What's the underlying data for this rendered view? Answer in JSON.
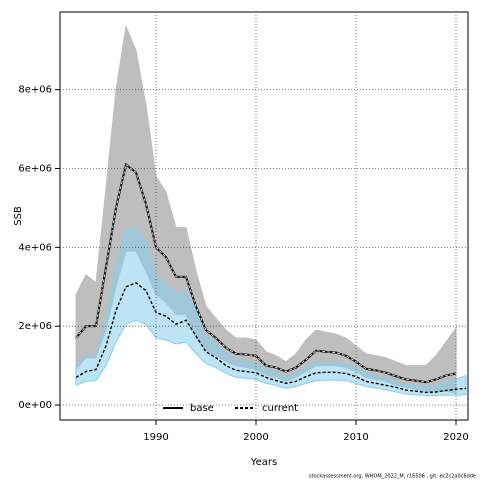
{
  "chart_data": {
    "type": "line",
    "xlabel": "Years",
    "ylabel": "SSB",
    "footer": "stockassessment.org, WHOM_2022_M, r16506 , git: ec2c2a0c6dde",
    "xlim": [
      1980.4,
      2021.2
    ],
    "ylim": [
      -380000,
      9970000
    ],
    "xticks": [
      1990,
      2000,
      2010,
      2020
    ],
    "yticks": [
      {
        "value": 0,
        "label": "0e+00"
      },
      {
        "value": 2000000,
        "label": "2e+06"
      },
      {
        "value": 4000000,
        "label": "4e+06"
      },
      {
        "value": 6000000,
        "label": "6e+06"
      },
      {
        "value": 8000000,
        "label": "8e+06"
      }
    ],
    "grid": true,
    "legend": "bottom",
    "series": [
      {
        "name": "base",
        "color": "#000000",
        "band_color": "#bebebe",
        "dashed": true,
        "x": [
          1982,
          1983,
          1984,
          1985,
          1986,
          1987,
          1988,
          1989,
          1990,
          1991,
          1992,
          1993,
          1994,
          1995,
          1996,
          1997,
          1998,
          1999,
          2000,
          2001,
          2002,
          2003,
          2004,
          2005,
          2006,
          2007,
          2008,
          2009,
          2010,
          2011,
          2012,
          2013,
          2014,
          2015,
          2016,
          2017,
          2018,
          2019,
          2020
        ],
        "values": [
          1700000.0,
          2000000.0,
          2000000.0,
          3500000.0,
          5000000.0,
          6100000.0,
          5900000.0,
          5100000.0,
          4000000.0,
          3750000.0,
          3250000.0,
          3250000.0,
          2500000.0,
          1900000.0,
          1700000.0,
          1450000.0,
          1300000.0,
          1280000.0,
          1250000.0,
          1000000.0,
          950000.0,
          850000.0,
          950000.0,
          1150000.0,
          1380000.0,
          1350000.0,
          1330000.0,
          1250000.0,
          1100000.0,
          920000.0,
          880000.0,
          820000.0,
          730000.0,
          650000.0,
          620000.0,
          580000.0,
          650000.0,
          750000.0,
          800000.0
        ],
        "upper": [
          2800000.0,
          3300000.0,
          3100000.0,
          5500000.0,
          8000000.0,
          9600000.0,
          9000000.0,
          7600000.0,
          5800000.0,
          5400000.0,
          4500000.0,
          4500000.0,
          3400000.0,
          2500000.0,
          2200000.0,
          1900000.0,
          1700000.0,
          1700000.0,
          1650000.0,
          1350000.0,
          1250000.0,
          1100000.0,
          1300000.0,
          1650000.0,
          1900000.0,
          1850000.0,
          1800000.0,
          1700000.0,
          1500000.0,
          1300000.0,
          1250000.0,
          1200000.0,
          1100000.0,
          1000000.0,
          1000000.0,
          1000000.0,
          1250000.0,
          1600000.0,
          1950000.0
        ],
        "lower": [
          900000.0,
          1200000.0,
          1200000.0,
          1900000.0,
          3000000.0,
          3900000.0,
          3900000.0,
          3400000.0,
          2800000.0,
          2600000.0,
          2300000.0,
          2300000.0,
          1700000.0,
          1400000.0,
          1250000.0,
          1100000.0,
          1000000.0,
          950000.0,
          900000.0,
          750000.0,
          700000.0,
          600000.0,
          700000.0,
          850000.0,
          1000000.0,
          1000000.0,
          1000000.0,
          950000.0,
          850000.0,
          700000.0,
          650000.0,
          600000.0,
          500000.0,
          450000.0,
          400000.0,
          350000.0,
          350000.0,
          350000.0,
          300000.0
        ]
      },
      {
        "name": "current",
        "color": "#000000",
        "band_color": "#87ceeb",
        "dashed": true,
        "x": [
          1982,
          1983,
          1984,
          1985,
          1986,
          1987,
          1988,
          1989,
          1990,
          1991,
          1992,
          1993,
          1994,
          1995,
          1996,
          1997,
          1998,
          1999,
          2000,
          2001,
          2002,
          2003,
          2004,
          2005,
          2006,
          2007,
          2008,
          2009,
          2010,
          2011,
          2012,
          2013,
          2014,
          2015,
          2016,
          2017,
          2018,
          2019,
          2020,
          2021
        ],
        "values": [
          700000.0,
          850000.0,
          900000.0,
          1500000.0,
          2400000.0,
          3000000.0,
          3100000.0,
          2900000.0,
          2350000.0,
          2250000.0,
          2050000.0,
          2150000.0,
          1750000.0,
          1350000.0,
          1200000.0,
          1000000.0,
          880000.0,
          850000.0,
          820000.0,
          700000.0,
          620000.0,
          550000.0,
          600000.0,
          720000.0,
          820000.0,
          830000.0,
          830000.0,
          800000.0,
          720000.0,
          600000.0,
          550000.0,
          500000.0,
          450000.0,
          380000.0,
          350000.0,
          320000.0,
          330000.0,
          370000.0,
          400000.0,
          420000.0
        ],
        "upper": [
          1000000.0,
          1250000.0,
          1250000.0,
          2200000.0,
          3600000.0,
          4500000.0,
          4500000.0,
          4100000.0,
          3250000.0,
          3100000.0,
          2800000.0,
          2900000.0,
          2350000.0,
          1750000.0,
          1550000.0,
          1300000.0,
          1150000.0,
          1100000.0,
          1050000.0,
          900000.0,
          800000.0,
          720000.0,
          800000.0,
          950000.0,
          1100000.0,
          1100000.0,
          1100000.0,
          1050000.0,
          950000.0,
          800000.0,
          750000.0,
          680000.0,
          600000.0,
          520000.0,
          500000.0,
          480000.0,
          500000.0,
          580000.0,
          650000.0,
          750000.0
        ],
        "lower": [
          500000.0,
          600000.0,
          620000.0,
          1000000.0,
          1600000.0,
          2050000.0,
          2150000.0,
          2050000.0,
          1700000.0,
          1650000.0,
          1550000.0,
          1600000.0,
          1300000.0,
          1050000.0,
          950000.0,
          800000.0,
          700000.0,
          680000.0,
          650000.0,
          550000.0,
          500000.0,
          420000.0,
          470000.0,
          550000.0,
          620000.0,
          630000.0,
          630000.0,
          620000.0,
          550000.0,
          470000.0,
          430000.0,
          380000.0,
          330000.0,
          280000.0,
          260000.0,
          240000.0,
          240000.0,
          250000.0,
          250000.0,
          260000.0
        ]
      }
    ]
  }
}
